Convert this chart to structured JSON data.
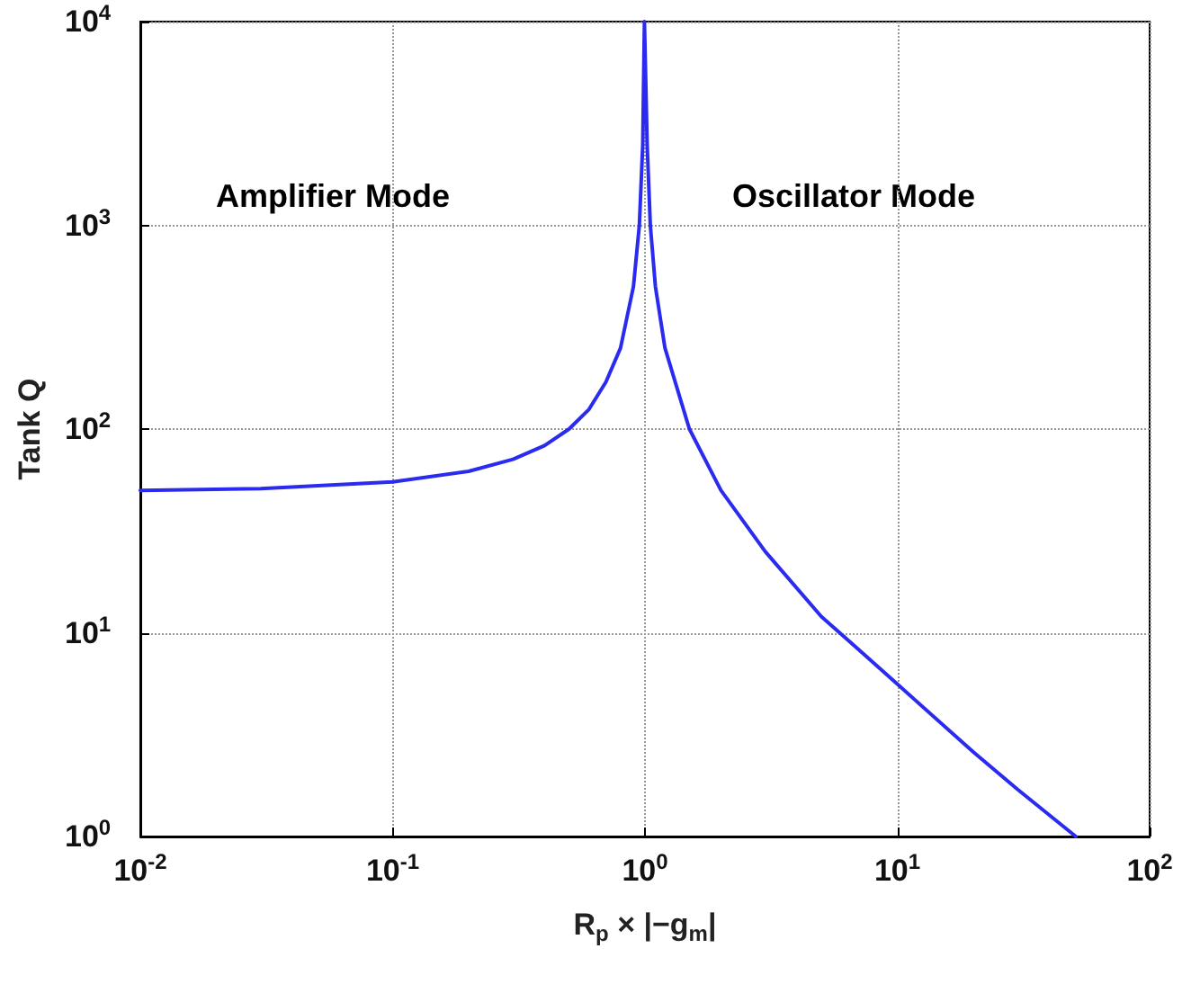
{
  "chart_data": {
    "type": "line",
    "xlabel": "R$_{p}$ × |−g$_{m}$|",
    "ylabel": "Tank Q",
    "annotations": [
      "Amplifier Mode",
      "Oscillator Mode"
    ],
    "x": [
      0.01,
      0.03,
      0.1,
      0.2,
      0.3,
      0.4,
      0.5,
      0.6,
      0.7,
      0.8,
      0.9,
      0.95,
      0.98,
      0.995,
      1.005,
      1.02,
      1.05,
      1.1,
      1.2,
      1.5,
      2,
      3,
      5,
      7,
      10,
      20,
      30,
      51
    ],
    "series": [
      {
        "color": "#2b2bf0",
        "values": [
          50,
          51,
          55,
          62,
          71,
          83,
          100,
          125,
          170,
          250,
          500,
          1000,
          2500,
          10000,
          10000,
          2500,
          1000,
          500,
          250,
          100,
          50,
          25,
          12,
          8.3,
          5.6,
          2.6,
          1.7,
          1.0
        ]
      }
    ],
    "log": "xy",
    "grid": true,
    "marker": "none",
    "line_style": "solid",
    "xlim": [
      0.01,
      100
    ],
    "ylim": [
      1,
      10000
    ],
    "xticks": [
      {
        "value": 0.01,
        "label": "10$^{-2}$"
      },
      {
        "value": 0.1,
        "label": "10$^{-1}$"
      },
      {
        "value": 1,
        "label": "10$^{0}$"
      },
      {
        "value": 10,
        "label": "10$^{1}$"
      },
      {
        "value": 100,
        "label": "10$^{2}$"
      }
    ],
    "yticks": [
      {
        "value": 1,
        "label": "10$^{0}$"
      },
      {
        "value": 10,
        "label": "10$^{1}$"
      },
      {
        "value": 100,
        "label": "10$^{2}$"
      },
      {
        "value": 1000,
        "label": "10$^{3}$"
      },
      {
        "value": 10000,
        "label": "10$^{4}$"
      }
    ]
  }
}
